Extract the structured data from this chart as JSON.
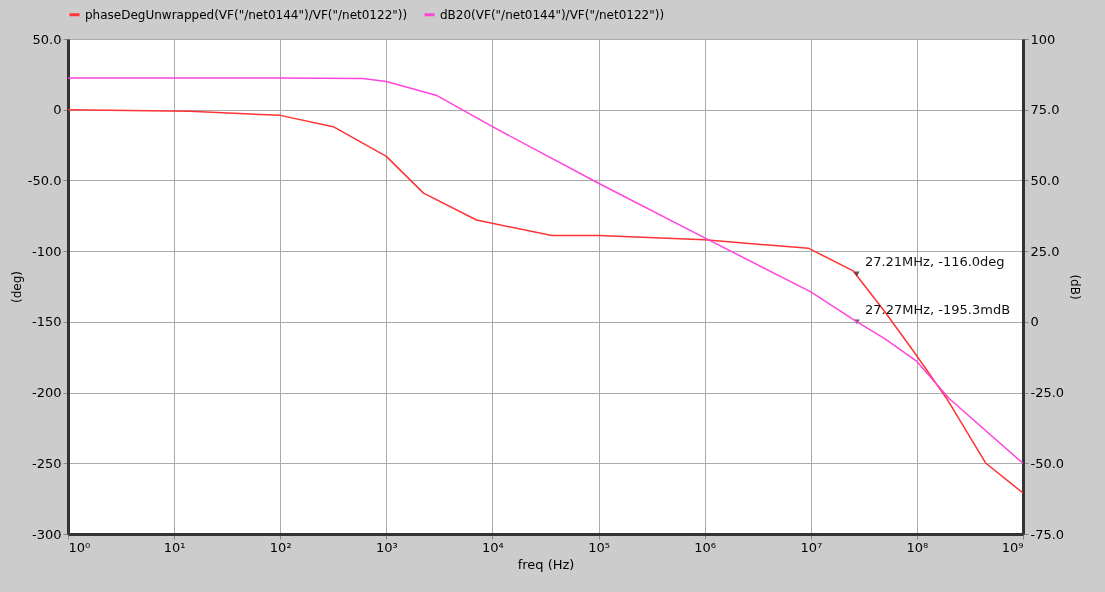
{
  "chart_data": {
    "type": "line",
    "xlabel": "freq (Hz)",
    "ylabel": "(deg)",
    "y2label": "(dB)",
    "log": "x",
    "grid": true,
    "legend": "top left",
    "line_style": "solid",
    "marker": "none",
    "xlim": [
      1,
      1000000000
    ],
    "xticks": [
      {
        "value": 1,
        "label": "10⁰"
      },
      {
        "value": 10,
        "label": "10¹"
      },
      {
        "value": 100,
        "label": "10²"
      },
      {
        "value": 1000,
        "label": "10³"
      },
      {
        "value": 10000,
        "label": "10⁴"
      },
      {
        "value": 100000,
        "label": "10⁵"
      },
      {
        "value": 1000000,
        "label": "10⁶"
      },
      {
        "value": 10000000,
        "label": "10⁷"
      },
      {
        "value": 100000000,
        "label": "10⁸"
      },
      {
        "value": 1000000000,
        "label": "10⁹"
      }
    ],
    "ylim": [
      -300,
      50
    ],
    "yticks": [
      {
        "value": -300,
        "label": "-300"
      },
      {
        "value": -250,
        "label": "-250"
      },
      {
        "value": -200,
        "label": "-200"
      },
      {
        "value": -150,
        "label": "-150"
      },
      {
        "value": -100,
        "label": "-100"
      },
      {
        "value": -50,
        "label": "-50.0"
      },
      0,
      {
        "value": 50,
        "label": "50.0"
      }
    ],
    "y2lim": [
      -75,
      100
    ],
    "y2ticks": [
      {
        "value": -75,
        "label": "-75.0"
      },
      {
        "value": -50,
        "label": "-50.0"
      },
      {
        "value": -25,
        "label": "-25.0"
      },
      0,
      {
        "value": 25,
        "label": "25.0"
      },
      {
        "value": 50,
        "label": "50.0"
      },
      {
        "value": 75,
        "label": "75.0"
      },
      100
    ],
    "series": [
      {
        "name": "phaseDegUnwrapped(VF(\"/net0144\")/VF(\"/net0122\"))",
        "color": "#ff3333",
        "x": [
          1,
          14,
          100,
          316,
          1000,
          2240,
          7080,
          36300,
          100000,
          1000000,
          9550000,
          25100000,
          50100000,
          93300000,
          190000000,
          447000000,
          1000000000
        ],
        "values": [
          0,
          -1,
          -4,
          -12,
          -33,
          -59,
          -78,
          -89,
          -89,
          -92,
          -98,
          -114,
          -143,
          -171,
          -204,
          -250,
          -271
        ]
      },
      {
        "name": "dB20(VF(\"/net0144\")/VF(\"/net0122\"))",
        "color": "#ff44dd",
        "axis": "y2",
        "x": [
          1,
          100,
          600,
          1000,
          3000,
          10000,
          100000,
          1000000,
          10000000,
          27270000,
          50100000,
          100000000,
          200000000,
          1000000000
        ],
        "values": [
          86.2,
          86.2,
          86,
          85,
          80,
          69,
          49,
          29.7,
          10.6,
          0,
          -6,
          -14,
          -27,
          -50
        ]
      }
    ],
    "annotations": [
      {
        "text": "27.21MHz, -116.0deg",
        "x": 27210000,
        "y": -116
      },
      {
        "text": "27.27MHz, -195.3mdB",
        "x": 27270000,
        "y": -150
      }
    ]
  }
}
